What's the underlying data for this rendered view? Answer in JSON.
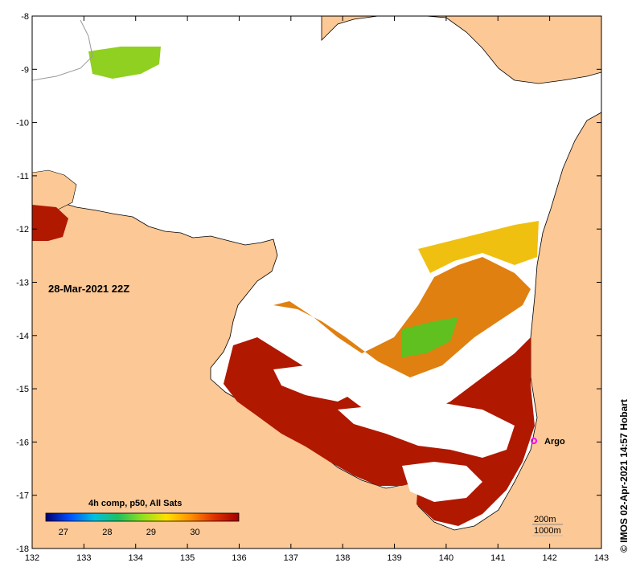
{
  "map": {
    "timestamp": "28-Mar-2021 22Z",
    "colorbar_title": "4h comp, p50, All Sats",
    "colorbar_ticks": [
      "27",
      "28",
      "29",
      "30"
    ],
    "colorbar_stops": [
      "#000070",
      "#0050ff",
      "#00c0e0",
      "#20c060",
      "#90e020",
      "#ffe000",
      "#ff9000",
      "#e03000",
      "#a00000"
    ],
    "argo_label": "Argo",
    "depth_contours": [
      "200m",
      "1000m"
    ],
    "credit": "© IMOS 02-Apr-2021 14:57 Hobart",
    "x_ticks": [
      "132",
      "133",
      "134",
      "135",
      "136",
      "137",
      "138",
      "139",
      "140",
      "141",
      "142",
      "143"
    ],
    "y_ticks": [
      "-8",
      "-9",
      "-10",
      "-11",
      "-12",
      "-13",
      "-14",
      "-15",
      "-16",
      "-17",
      "-18"
    ],
    "colors": {
      "land": "#fbc896",
      "ocean_nodata": "#ffffff",
      "argo_marker": "#ff00ff",
      "sst_hot": "#b01800",
      "sst_warm": "#e08010",
      "sst_mid": "#f0c010",
      "sst_cool": "#60c020"
    }
  }
}
